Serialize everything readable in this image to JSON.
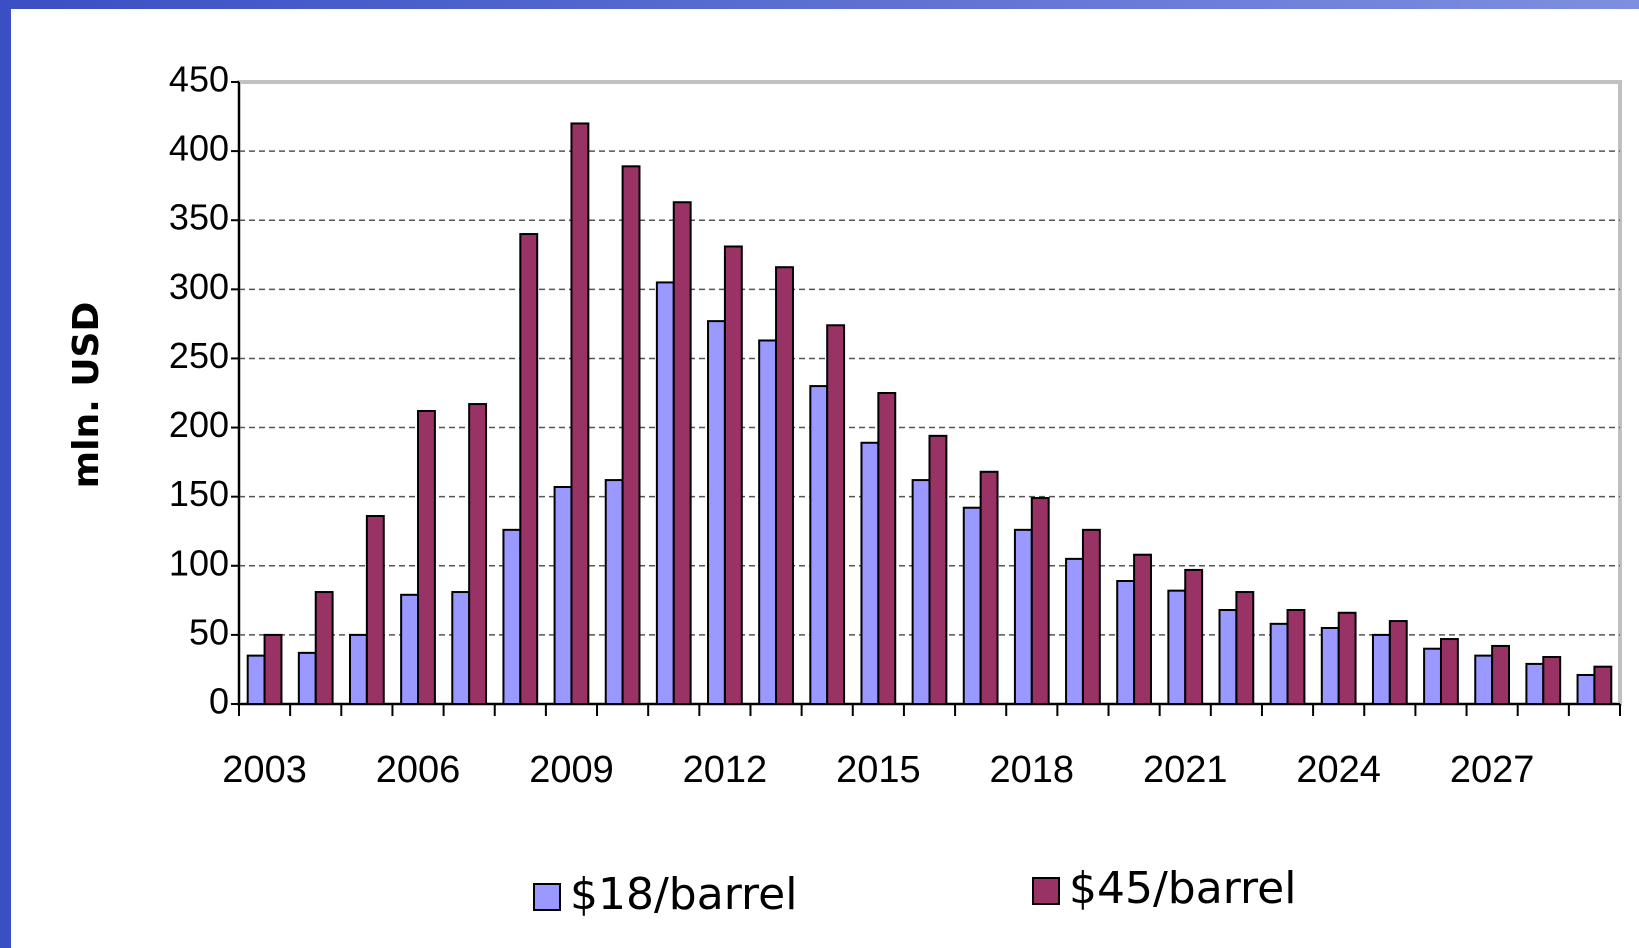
{
  "chart_data": {
    "type": "bar",
    "y_label": "mln. USD",
    "categories": [
      "2003",
      null,
      null,
      "2006",
      null,
      null,
      "2009",
      null,
      null,
      "2012",
      null,
      null,
      "2015",
      null,
      null,
      "2018",
      null,
      null,
      "2021",
      null,
      null,
      "2024",
      null,
      null,
      "2027",
      null,
      null
    ],
    "series": [
      {
        "name": "$18/barrel",
        "color": "#9999ff",
        "values": [
          35,
          37,
          50,
          79,
          81,
          126,
          157,
          162,
          305,
          277,
          263,
          230,
          189,
          162,
          142,
          126,
          105,
          89,
          82,
          68,
          58,
          55,
          50,
          40,
          35,
          29,
          21
        ]
      },
      {
        "name": "$45/barrel",
        "color": "#993366",
        "values": [
          50,
          81,
          136,
          212,
          217,
          340,
          420,
          389,
          363,
          331,
          316,
          274,
          225,
          194,
          168,
          149,
          126,
          108,
          97,
          81,
          68,
          66,
          60,
          47,
          42,
          34,
          27
        ]
      }
    ],
    "ylim": [
      0,
      450
    ],
    "yticks": [
      0,
      50,
      100,
      150,
      200,
      250,
      300,
      350,
      400,
      450
    ],
    "grid": true,
    "legend": "bottom"
  }
}
